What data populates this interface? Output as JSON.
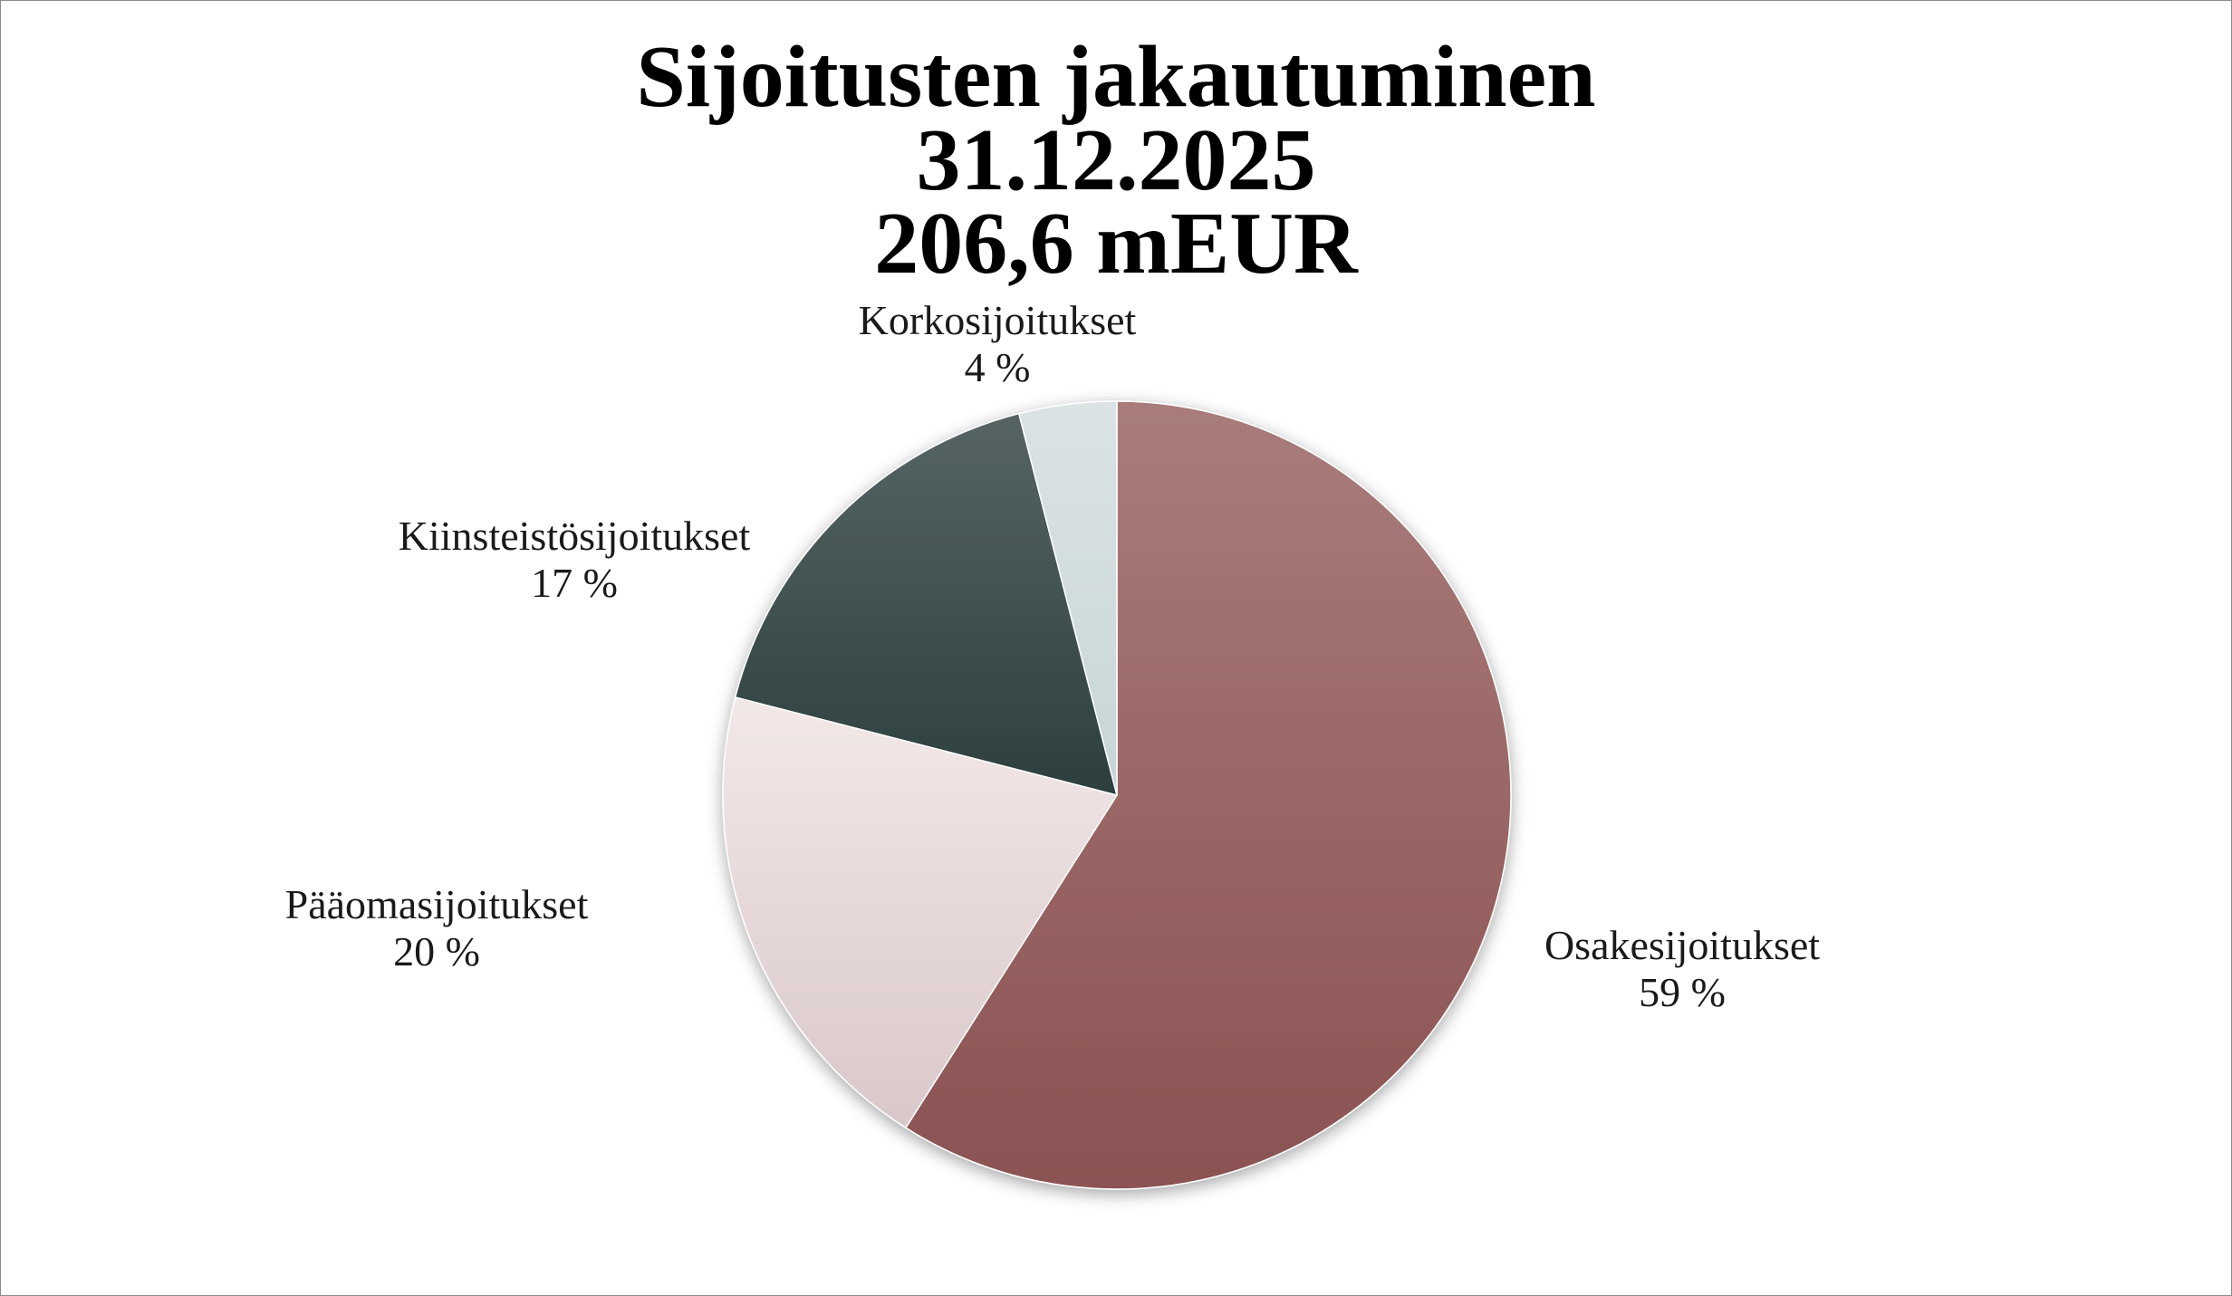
{
  "chart_data": {
    "type": "pie",
    "title": "Sijoitusten jakautuminen",
    "subtitle": [
      "31.12.2025",
      "206,6 mEUR"
    ],
    "legend": "none",
    "labels_position": "outside",
    "direction": "clockwise",
    "start": "top",
    "slices": [
      {
        "label": "Osakesijoitukset",
        "value": 59,
        "percent_label": "59 %",
        "color_top": "#a97c7b",
        "color_bottom": "#8b5252"
      },
      {
        "label": "Pääomasijoitukset",
        "value": 20,
        "percent_label": "20 %",
        "color_top": "#f3e8e8",
        "color_bottom": "#d9c8c9"
      },
      {
        "label": "Kiinsteistösijoitukset",
        "value": 17,
        "percent_label": "17 %",
        "color_top": "#566464",
        "color_bottom": "#2c3f3e"
      },
      {
        "label": "Korkosijoitukset",
        "value": 4,
        "percent_label": "4 %",
        "color_top": "#dbe3e4",
        "color_bottom": "#c7d5d6"
      }
    ]
  }
}
